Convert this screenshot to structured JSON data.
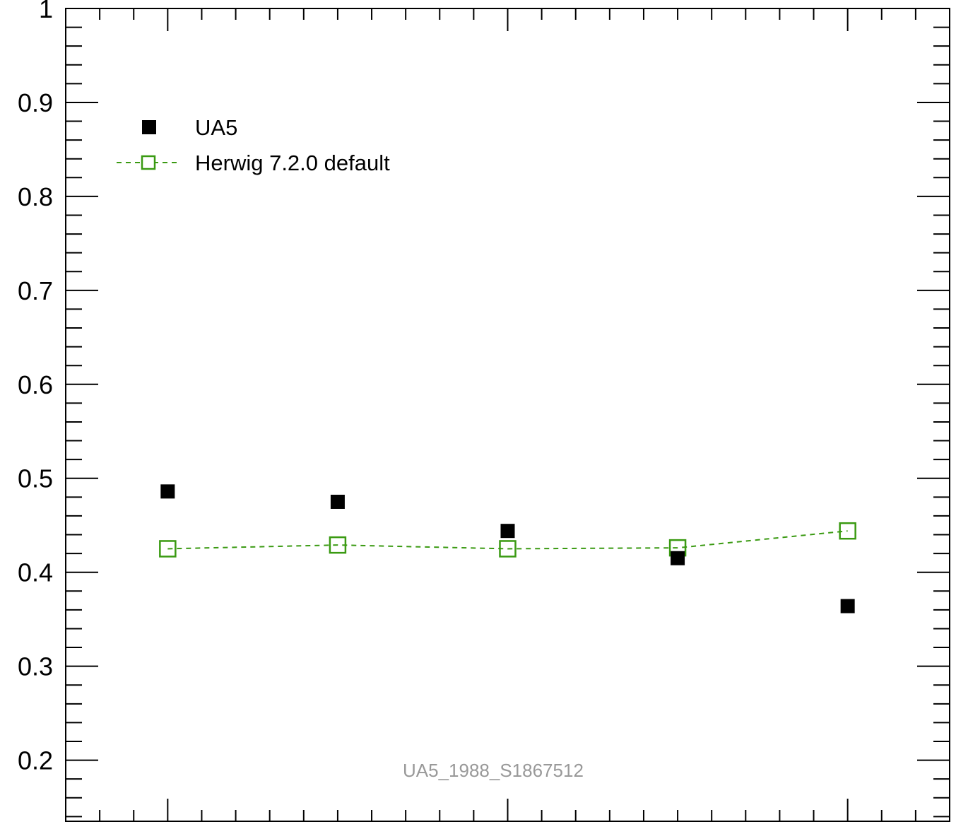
{
  "chart_data": {
    "type": "scatter",
    "title": "",
    "xlabel": "",
    "ylabel": "",
    "x": [
      1,
      2,
      3,
      4,
      5
    ],
    "xlim": [
      0.4,
      5.6
    ],
    "ylim": [
      0.135,
      1.0
    ],
    "yticks": [
      0.2,
      0.3,
      0.4,
      0.5,
      0.6,
      0.7,
      0.8,
      0.9,
      1.0
    ],
    "ytick_labels": [
      "0.2",
      "0.3",
      "0.4",
      "0.5",
      "0.6",
      "0.7",
      "0.8",
      "0.9",
      "1"
    ],
    "grid": false,
    "legend_position": "top-left",
    "series": [
      {
        "name": "UA5",
        "style": "filled-square-markers",
        "color": "#000000",
        "values": [
          0.486,
          0.475,
          0.444,
          0.415,
          0.364
        ]
      },
      {
        "name": "Herwig 7.2.0 default",
        "style": "dashed-line-open-square-markers",
        "color": "#3a9a12",
        "values": [
          0.425,
          0.429,
          0.425,
          0.426,
          0.444
        ]
      }
    ],
    "annotations": [
      "UA5_1988_S1867512"
    ]
  }
}
